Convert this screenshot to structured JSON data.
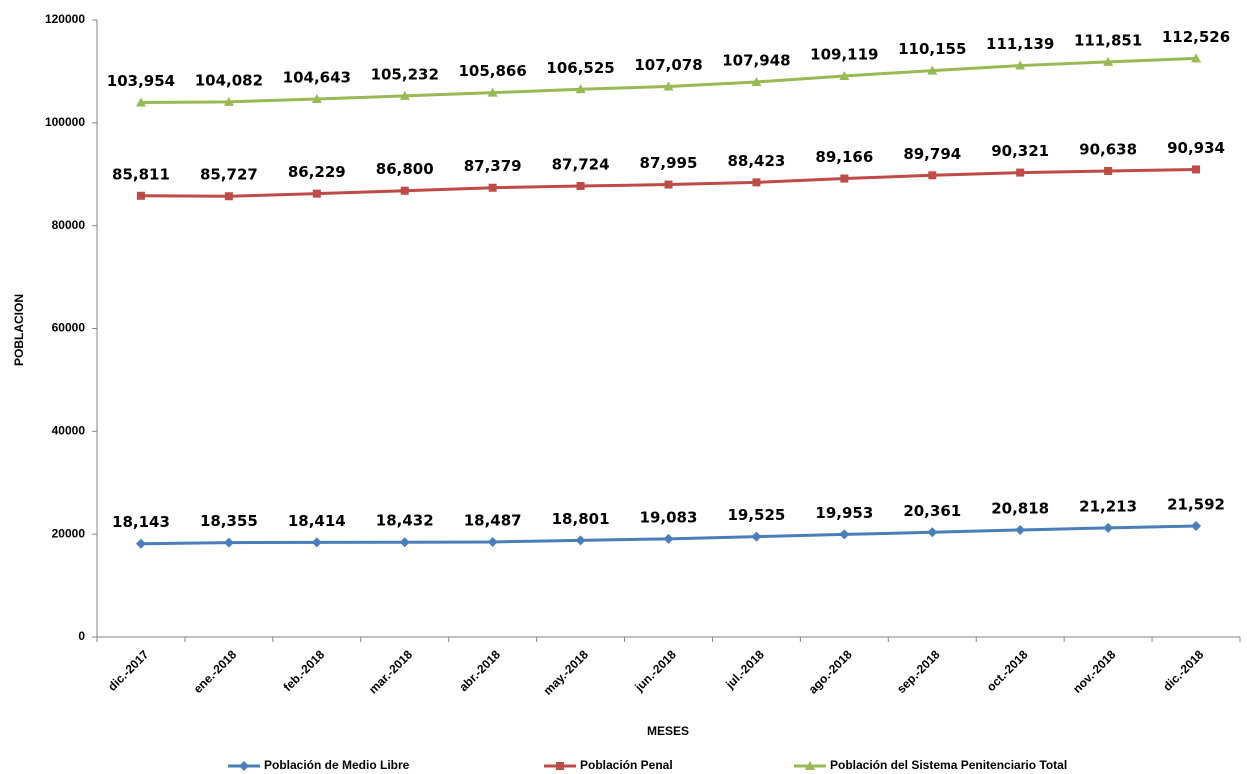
{
  "chart_data": {
    "type": "line",
    "x_label": "MESES",
    "y_label": "POBLACION",
    "categories": [
      "dic.-2017",
      "ene.-2018",
      "feb.-2018",
      "mar.-2018",
      "abr.-2018",
      "may.-2018",
      "jun.-2018",
      "jul.-2018",
      "ago.-2018",
      "sep.-2018",
      "oct.-2018",
      "nov.-2018",
      "dic.-2018"
    ],
    "series": [
      {
        "name": "Población de Medio Libre",
        "color": "#4a7ebb",
        "marker": "diamond",
        "values": [
          18143,
          18355,
          18414,
          18432,
          18487,
          18801,
          19083,
          19525,
          19953,
          20361,
          20818,
          21213,
          21592
        ],
        "value_labels": [
          "18,143",
          "18,355",
          "18,414",
          "18,432",
          "18,487",
          "18,801",
          "19,083",
          "19,525",
          "19,953",
          "20,361",
          "20,818",
          "21,213",
          "21,592"
        ]
      },
      {
        "name": "Población Penal",
        "color": "#be4b48",
        "marker": "square",
        "values": [
          85811,
          85727,
          86229,
          86800,
          87379,
          87724,
          87995,
          88423,
          89166,
          89794,
          90321,
          90638,
          90934
        ],
        "value_labels": [
          "85,811",
          "85,727",
          "86,229",
          "86,800",
          "87,379",
          "87,724",
          "87,995",
          "88,423",
          "89,166",
          "89,794",
          "90,321",
          "90,638",
          "90,934"
        ]
      },
      {
        "name": "Población del Sistema Penitenciario Total",
        "color": "#98b954",
        "marker": "triangle",
        "values": [
          103954,
          104082,
          104643,
          105232,
          105866,
          106525,
          107078,
          107948,
          109119,
          110155,
          111139,
          111851,
          112526
        ],
        "value_labels": [
          "103,954",
          "104,082",
          "104,643",
          "105,232",
          "105,866",
          "106,525",
          "107,078",
          "107,948",
          "109,119",
          "110,155",
          "111,139",
          "111,851",
          "112,526"
        ]
      }
    ],
    "ylim": [
      0,
      120000
    ],
    "yticks": [
      0,
      20000,
      40000,
      60000,
      80000,
      100000,
      120000
    ],
    "grid": false,
    "legend": "bottom"
  }
}
